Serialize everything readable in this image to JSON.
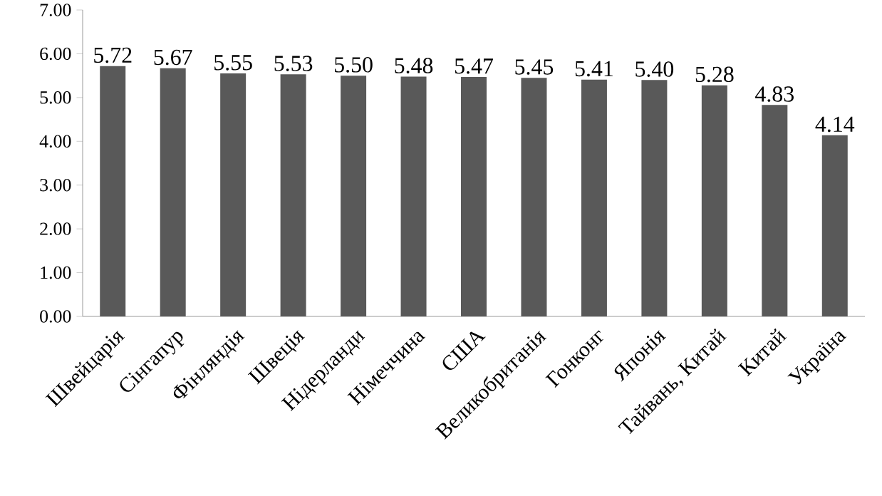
{
  "chart_data": {
    "type": "bar",
    "categories": [
      "Швейцарія",
      "Сінгапур",
      "Фінляндія",
      "Швеція",
      "Нідерланди",
      "Німеччина",
      "США",
      "Великобританія",
      "Гонконг",
      "Японія",
      "Тайвань, Китай",
      "Китай",
      "Україна"
    ],
    "values": [
      5.72,
      5.67,
      5.55,
      5.53,
      5.5,
      5.48,
      5.47,
      5.45,
      5.41,
      5.4,
      5.28,
      4.83,
      4.14
    ],
    "color": "#595959",
    "ylim": [
      0,
      7
    ],
    "yticks": [
      {
        "value": 0,
        "label": "0.00"
      },
      {
        "value": 1,
        "label": "1.00"
      },
      {
        "value": 2,
        "label": "2.00"
      },
      {
        "value": 3,
        "label": "3.00"
      },
      {
        "value": 4,
        "label": "4.00"
      },
      {
        "value": 5,
        "label": "5.00"
      },
      {
        "value": 6,
        "label": "6.00"
      },
      {
        "value": 7,
        "label": "7.00"
      }
    ],
    "value_labels": [
      "5.72",
      "5.67",
      "5.55",
      "5.53",
      "5.50",
      "5.48",
      "5.47",
      "5.45",
      "5.41",
      "5.40",
      "5.28",
      "4.83",
      "4.14"
    ]
  }
}
